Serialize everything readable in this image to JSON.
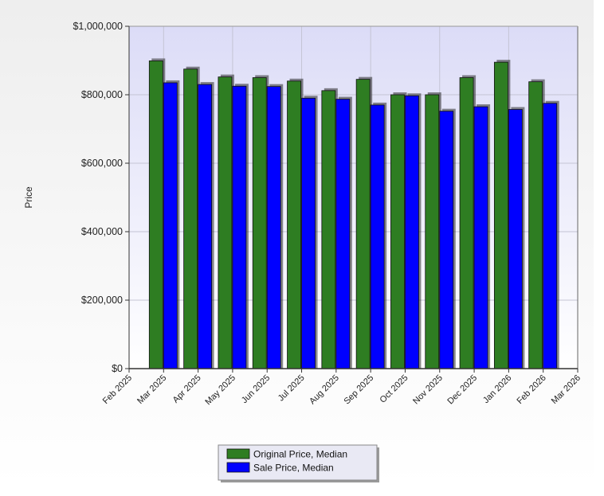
{
  "chart_data": {
    "type": "bar",
    "title": "",
    "xlabel": "",
    "ylabel": "Price",
    "ylim": [
      0,
      1000000
    ],
    "y_ticks": [
      {
        "value": 0,
        "label": "$0"
      },
      {
        "value": 200000,
        "label": "$200,000"
      },
      {
        "value": 400000,
        "label": "$400,000"
      },
      {
        "value": 600000,
        "label": "$600,000"
      },
      {
        "value": 800000,
        "label": "$800,000"
      },
      {
        "value": 1000000,
        "label": "$1,000,000"
      }
    ],
    "x_tick_labels": [
      "Feb 2025",
      "Mar 2025",
      "Apr 2025",
      "May 2025",
      "Jun 2025",
      "Jul 2025",
      "Aug 2025",
      "Sep 2025",
      "Oct 2025",
      "Nov 2025",
      "Dec 2025",
      "Jan 2026",
      "Feb 2026",
      "Mar 2026"
    ],
    "categories": [
      "Mar 2025",
      "Apr 2025",
      "May 2025",
      "Jun 2025",
      "Jul 2025",
      "Aug 2025",
      "Sep 2025",
      "Oct 2025",
      "Nov 2025",
      "Dec 2025",
      "Jan 2026",
      "Feb 2026"
    ],
    "series": [
      {
        "name": "Original Price, Median",
        "color": "#2e7d22",
        "values": [
          899000,
          875000,
          852000,
          850000,
          840000,
          812000,
          845000,
          800000,
          800000,
          850000,
          895000,
          838000
        ]
      },
      {
        "name": "Sale Price, Median",
        "color": "#0000ff",
        "values": [
          835000,
          830000,
          825000,
          824000,
          790000,
          787000,
          770000,
          797000,
          752000,
          765000,
          757000,
          775000
        ]
      }
    ],
    "grid": true,
    "legend_position": "bottom-center"
  }
}
